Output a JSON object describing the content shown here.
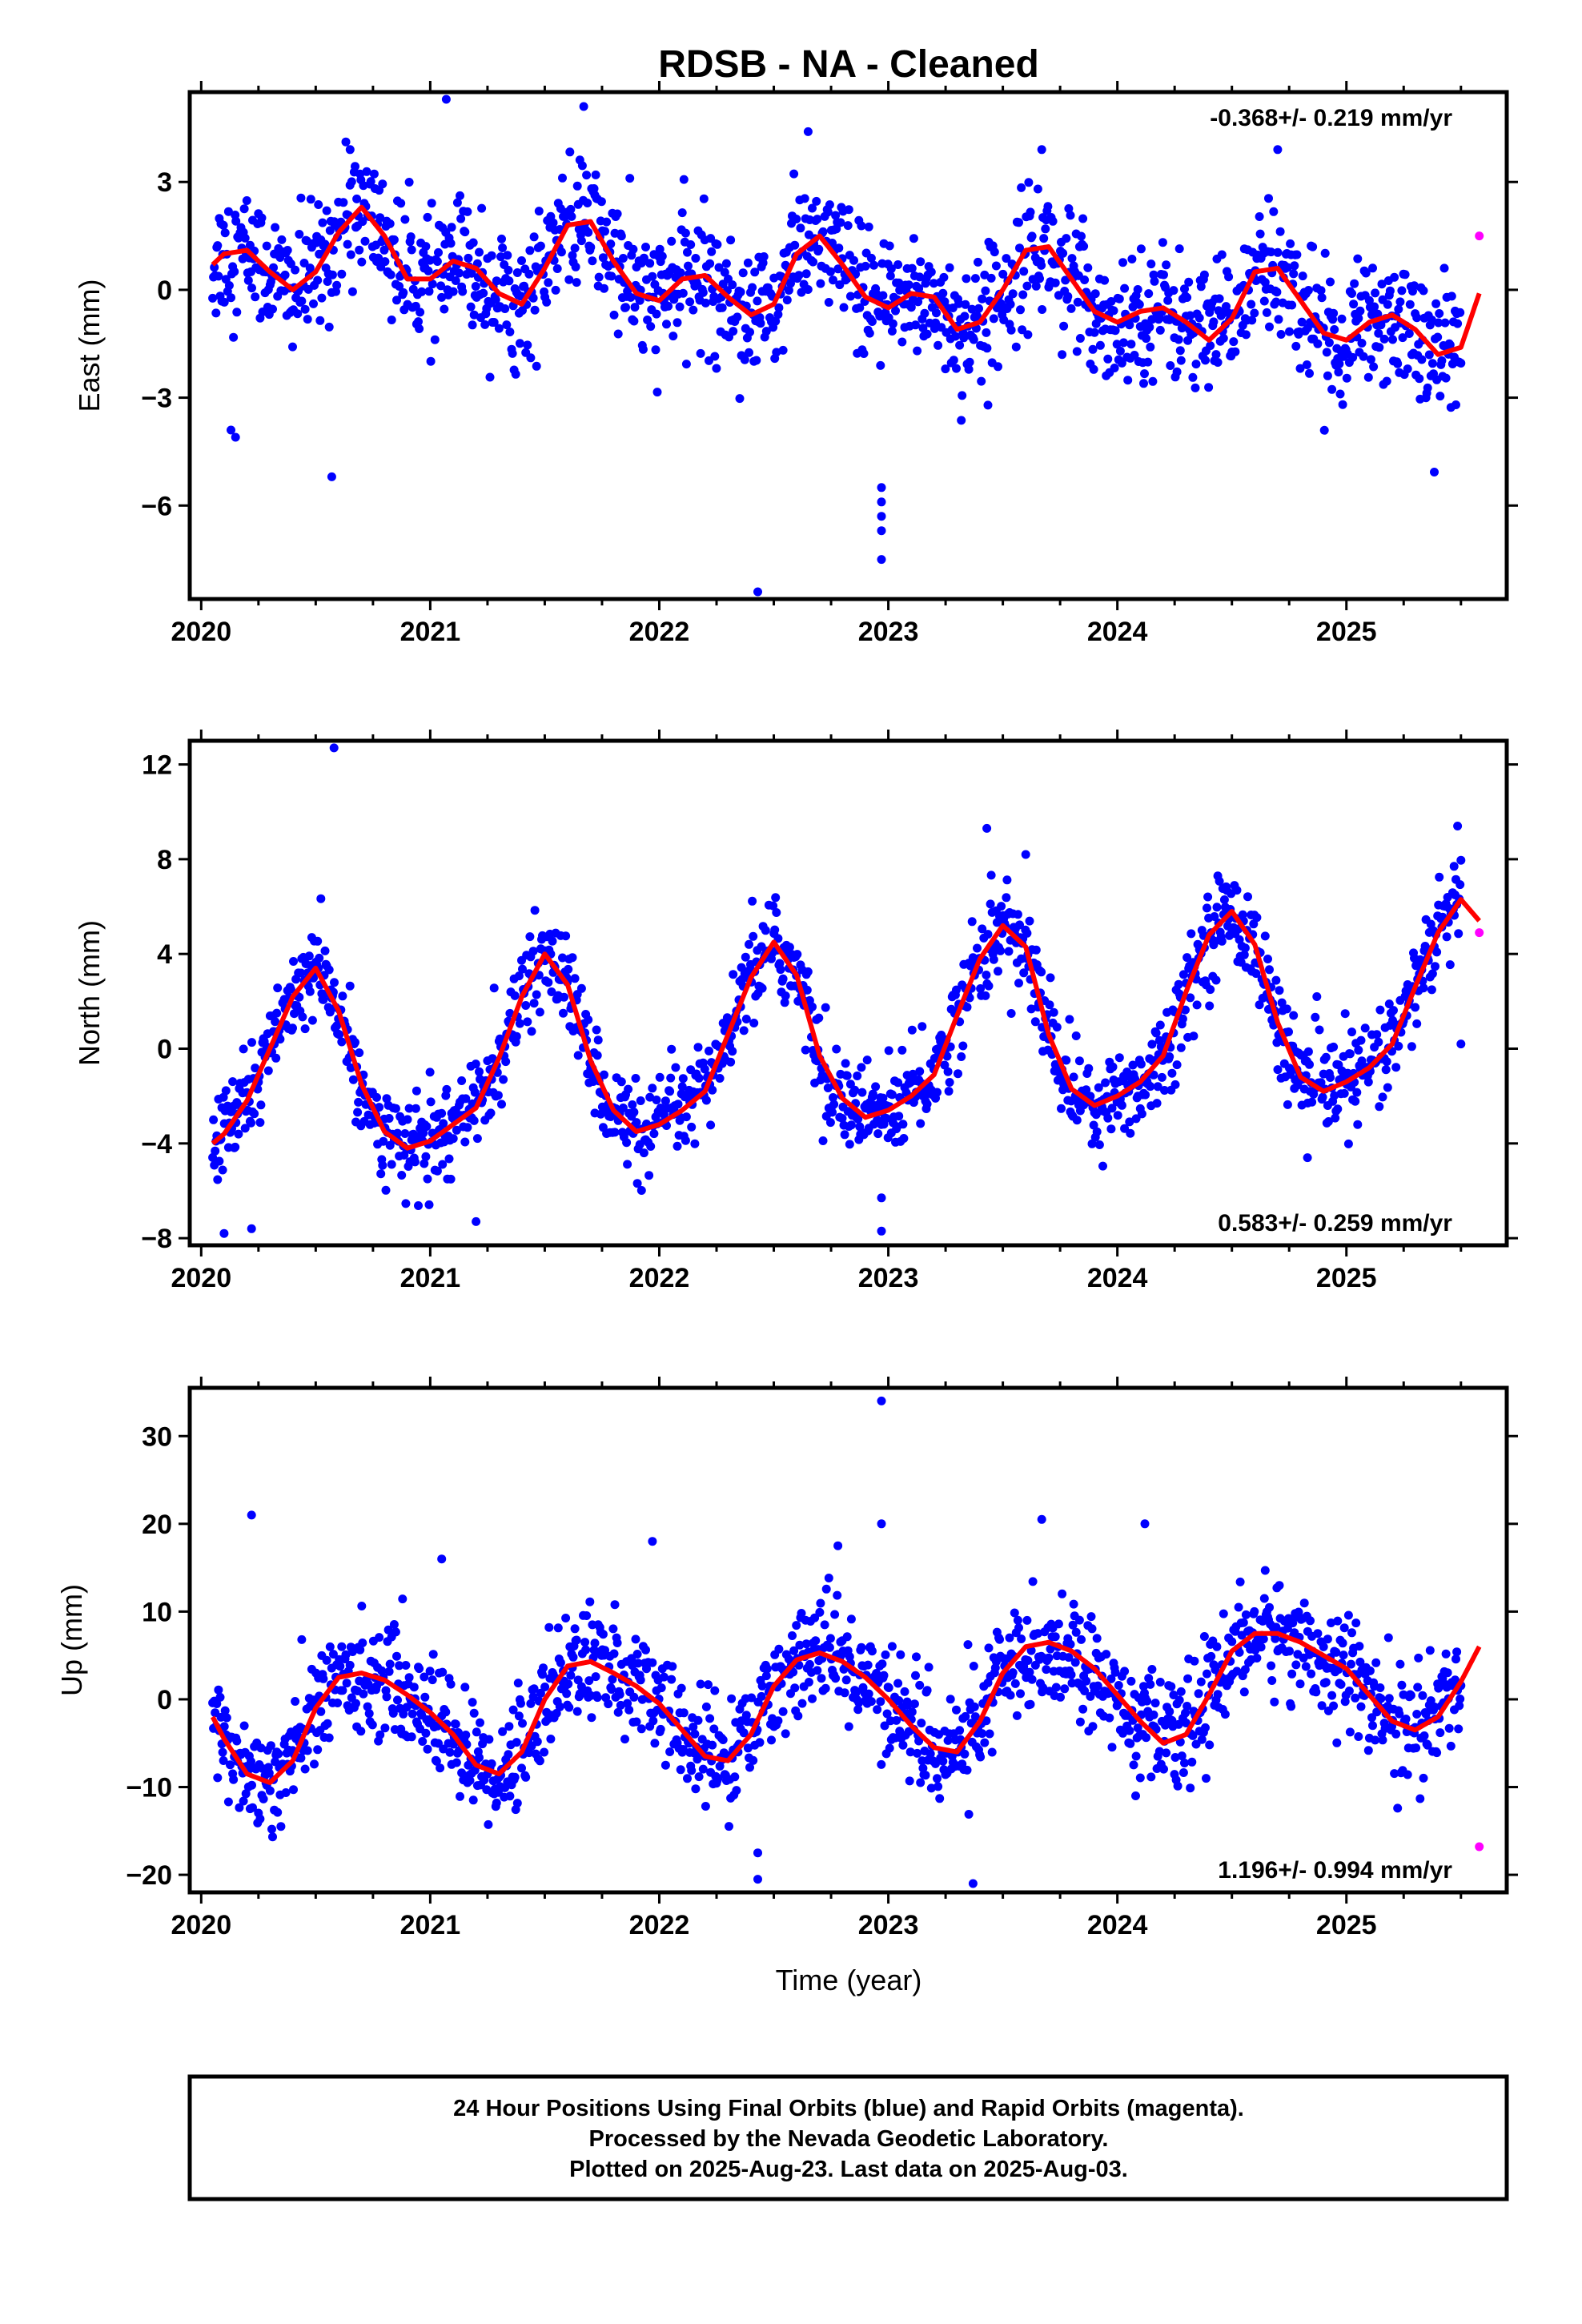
{
  "title": "RDSB  - NA - Cleaned",
  "colors": {
    "final": "#0000ff",
    "rapid": "#ff00ff",
    "model": "#ff0000",
    "frame": "#000000"
  },
  "chart_data": [
    {
      "type": "scatter",
      "ylabel": "East (mm)",
      "rate": "-0.368+/- 0.219 mm/yr",
      "xlim": [
        2019.95,
        2025.7
      ],
      "ylim": [
        -8.6,
        5.5
      ],
      "yticks": [
        3,
        0,
        -3,
        -6
      ],
      "ytick_labels": [
        "3",
        "0",
        "−3",
        "−6"
      ],
      "xticks": [
        2020,
        2021,
        2022,
        2023,
        2024,
        2025
      ],
      "xtick_labels": [
        "2020",
        "2021",
        "2022",
        "2023",
        "2024",
        "2025"
      ],
      "model_x": [
        2020.05,
        2020.1,
        2020.2,
        2020.3,
        2020.4,
        2020.5,
        2020.6,
        2020.7,
        2020.8,
        2020.9,
        2021.0,
        2021.1,
        2021.2,
        2021.3,
        2021.4,
        2021.5,
        2021.6,
        2021.7,
        2021.8,
        2021.9,
        2022.0,
        2022.1,
        2022.2,
        2022.3,
        2022.4,
        2022.5,
        2022.6,
        2022.7,
        2022.8,
        2022.9,
        2023.0,
        2023.1,
        2023.2,
        2023.3,
        2023.4,
        2023.5,
        2023.6,
        2023.7,
        2023.8,
        2023.9,
        2024.0,
        2024.1,
        2024.2,
        2024.3,
        2024.4,
        2024.5,
        2024.6,
        2024.7,
        2024.8,
        2024.9,
        2025.0,
        2025.1,
        2025.2,
        2025.3,
        2025.4,
        2025.5,
        2025.58
      ],
      "model_y": [
        0.7,
        1.0,
        1.1,
        0.5,
        0.0,
        0.5,
        1.6,
        2.3,
        1.5,
        0.3,
        0.3,
        0.8,
        0.6,
        -0.1,
        -0.4,
        0.6,
        1.8,
        1.9,
        0.8,
        -0.1,
        -0.3,
        0.3,
        0.4,
        -0.2,
        -0.7,
        -0.4,
        1.0,
        1.5,
        0.7,
        -0.2,
        -0.5,
        -0.1,
        -0.2,
        -1.1,
        -0.9,
        0.0,
        1.1,
        1.2,
        0.3,
        -0.6,
        -0.9,
        -0.6,
        -0.5,
        -0.9,
        -1.4,
        -0.8,
        0.5,
        0.6,
        -0.3,
        -1.2,
        -1.4,
        -0.9,
        -0.7,
        -1.1,
        -1.8,
        -1.6,
        -0.1
      ],
      "rapid_points": [
        [
          2025.58,
          1.5
        ]
      ],
      "outliers": [
        [
          2020.13,
          -3.9
        ],
        [
          2020.15,
          -4.1
        ],
        [
          2020.57,
          -5.2
        ],
        [
          2021.07,
          5.3
        ],
        [
          2022.43,
          -8.4
        ],
        [
          2022.97,
          -5.5
        ],
        [
          2022.97,
          -5.9
        ],
        [
          2022.97,
          -6.3
        ],
        [
          2022.97,
          -6.7
        ],
        [
          2022.97,
          -7.5
        ],
        [
          2021.67,
          5.1
        ],
        [
          2022.65,
          4.4
        ],
        [
          2024.7,
          3.9
        ],
        [
          2020.65,
          3.9
        ],
        [
          2023.67,
          3.9
        ]
      ],
      "noise": 0.9
    },
    {
      "type": "scatter",
      "ylabel": "North (mm)",
      "rate": "0.583+/- 0.259 mm/yr",
      "xlim": [
        2019.95,
        2025.7
      ],
      "ylim": [
        -8.3,
        13.0
      ],
      "yticks": [
        12,
        8,
        4,
        0,
        -4,
        -8
      ],
      "ytick_labels": [
        "12",
        "8",
        "4",
        "0",
        "−4",
        "−8"
      ],
      "xticks": [
        2020,
        2021,
        2022,
        2023,
        2024,
        2025
      ],
      "xtick_labels": [
        "2020",
        "2021",
        "2022",
        "2023",
        "2024",
        "2025"
      ],
      "model_x": [
        2020.05,
        2020.1,
        2020.2,
        2020.3,
        2020.4,
        2020.5,
        2020.6,
        2020.7,
        2020.8,
        2020.9,
        2021.0,
        2021.1,
        2021.2,
        2021.3,
        2021.4,
        2021.5,
        2021.6,
        2021.7,
        2021.8,
        2021.9,
        2022.0,
        2022.1,
        2022.2,
        2022.3,
        2022.4,
        2022.5,
        2022.6,
        2022.7,
        2022.8,
        2022.9,
        2023.0,
        2023.1,
        2023.2,
        2023.3,
        2023.4,
        2023.5,
        2023.6,
        2023.7,
        2023.8,
        2023.9,
        2024.0,
        2024.1,
        2024.2,
        2024.3,
        2024.4,
        2024.5,
        2024.6,
        2024.7,
        2024.8,
        2024.9,
        2025.0,
        2025.1,
        2025.2,
        2025.3,
        2025.4,
        2025.5,
        2025.58
      ],
      "model_y": [
        -4.0,
        -3.6,
        -2.2,
        0.0,
        2.2,
        3.4,
        1.6,
        -1.5,
        -3.5,
        -4.2,
        -3.9,
        -3.2,
        -2.5,
        -0.4,
        2.2,
        4.0,
        2.7,
        -0.5,
        -2.6,
        -3.5,
        -3.2,
        -2.6,
        -1.8,
        0.6,
        3.0,
        4.5,
        3.1,
        -0.3,
        -2.1,
        -2.9,
        -2.6,
        -2.0,
        -1.1,
        1.4,
        3.8,
        5.2,
        4.3,
        0.6,
        -1.7,
        -2.4,
        -2.0,
        -1.4,
        -0.3,
        2.4,
        4.8,
        5.8,
        4.4,
        1.1,
        -1.2,
        -1.8,
        -1.4,
        -0.8,
        0.2,
        2.6,
        4.9,
        6.3,
        5.4
      ],
      "rapid_points": [
        [
          2025.58,
          4.9
        ]
      ],
      "outliers": [
        [
          2020.58,
          12.7
        ],
        [
          2020.1,
          -7.8
        ],
        [
          2020.22,
          -7.6
        ],
        [
          2023.43,
          9.3
        ],
        [
          2023.6,
          8.2
        ],
        [
          2022.97,
          -7.7
        ],
        [
          2022.97,
          -6.3
        ],
        [
          2021.2,
          -7.3
        ],
        [
          2024.83,
          -4.6
        ],
        [
          2025.47,
          7.7
        ],
        [
          2025.5,
          0.2
        ]
      ],
      "noise": 1.0
    },
    {
      "type": "scatter",
      "ylabel": "Up (mm)",
      "xlabel": "Time (year)",
      "rate": "1.196+/- 0.994 mm/yr",
      "xlim": [
        2019.95,
        2025.7
      ],
      "ylim": [
        -22.0,
        35.5
      ],
      "yticks": [
        30,
        20,
        10,
        0,
        -10,
        -20
      ],
      "ytick_labels": [
        "30",
        "20",
        "10",
        "0",
        "−10",
        "−20"
      ],
      "xticks": [
        2020,
        2021,
        2022,
        2023,
        2024,
        2025
      ],
      "xtick_labels": [
        "2020",
        "2021",
        "2022",
        "2023",
        "2024",
        "2025"
      ],
      "model_x": [
        2020.05,
        2020.1,
        2020.2,
        2020.3,
        2020.4,
        2020.5,
        2020.6,
        2020.7,
        2020.8,
        2020.9,
        2021.0,
        2021.1,
        2021.2,
        2021.3,
        2021.4,
        2021.5,
        2021.6,
        2021.7,
        2021.8,
        2021.9,
        2022.0,
        2022.1,
        2022.2,
        2022.3,
        2022.4,
        2022.5,
        2022.6,
        2022.7,
        2022.8,
        2022.9,
        2023.0,
        2023.1,
        2023.2,
        2023.3,
        2023.4,
        2023.5,
        2023.6,
        2023.7,
        2023.8,
        2023.9,
        2024.0,
        2024.1,
        2024.2,
        2024.3,
        2024.4,
        2024.5,
        2024.6,
        2024.7,
        2024.8,
        2024.9,
        2025.0,
        2025.1,
        2025.2,
        2025.3,
        2025.4,
        2025.5,
        2025.58
      ],
      "model_y": [
        -2.0,
        -4.5,
        -8.5,
        -9.5,
        -7.0,
        -1.0,
        2.5,
        3.0,
        2.2,
        0.5,
        -1.5,
        -4.0,
        -7.5,
        -8.5,
        -6.0,
        0.0,
        3.8,
        4.3,
        3.0,
        1.5,
        -0.5,
        -3.5,
        -6.5,
        -7.0,
        -4.0,
        1.5,
        4.5,
        5.3,
        4.3,
        2.5,
        0.0,
        -3.0,
        -5.5,
        -6.0,
        -2.5,
        3.0,
        6.0,
        6.5,
        5.5,
        3.5,
        0.5,
        -2.5,
        -5.0,
        -4.0,
        0.5,
        5.5,
        7.5,
        7.5,
        6.5,
        5.0,
        3.5,
        0.5,
        -2.5,
        -3.5,
        -2.0,
        2.0,
        6.0
      ],
      "rapid_points": [
        [
          2025.58,
          -16.8
        ]
      ],
      "outliers": [
        [
          2020.22,
          21.0
        ],
        [
          2022.97,
          34.0
        ],
        [
          2022.97,
          20.0
        ],
        [
          2023.67,
          20.5
        ],
        [
          2024.12,
          20.0
        ],
        [
          2021.05,
          16.0
        ],
        [
          2021.97,
          18.0
        ],
        [
          2022.43,
          -17.5
        ],
        [
          2022.43,
          -20.5
        ],
        [
          2023.37,
          -21.0
        ],
        [
          2022.78,
          17.5
        ],
        [
          2024.08,
          -11.0
        ]
      ],
      "noise": 3.2
    }
  ],
  "footer": {
    "line1": "24 Hour Positions Using Final Orbits (blue) and Rapid Orbits (magenta).",
    "line2": "Processed by the Nevada Geodetic Laboratory.",
    "line3": "Plotted on 2025-Aug-23. Last data on 2025-Aug-03."
  }
}
